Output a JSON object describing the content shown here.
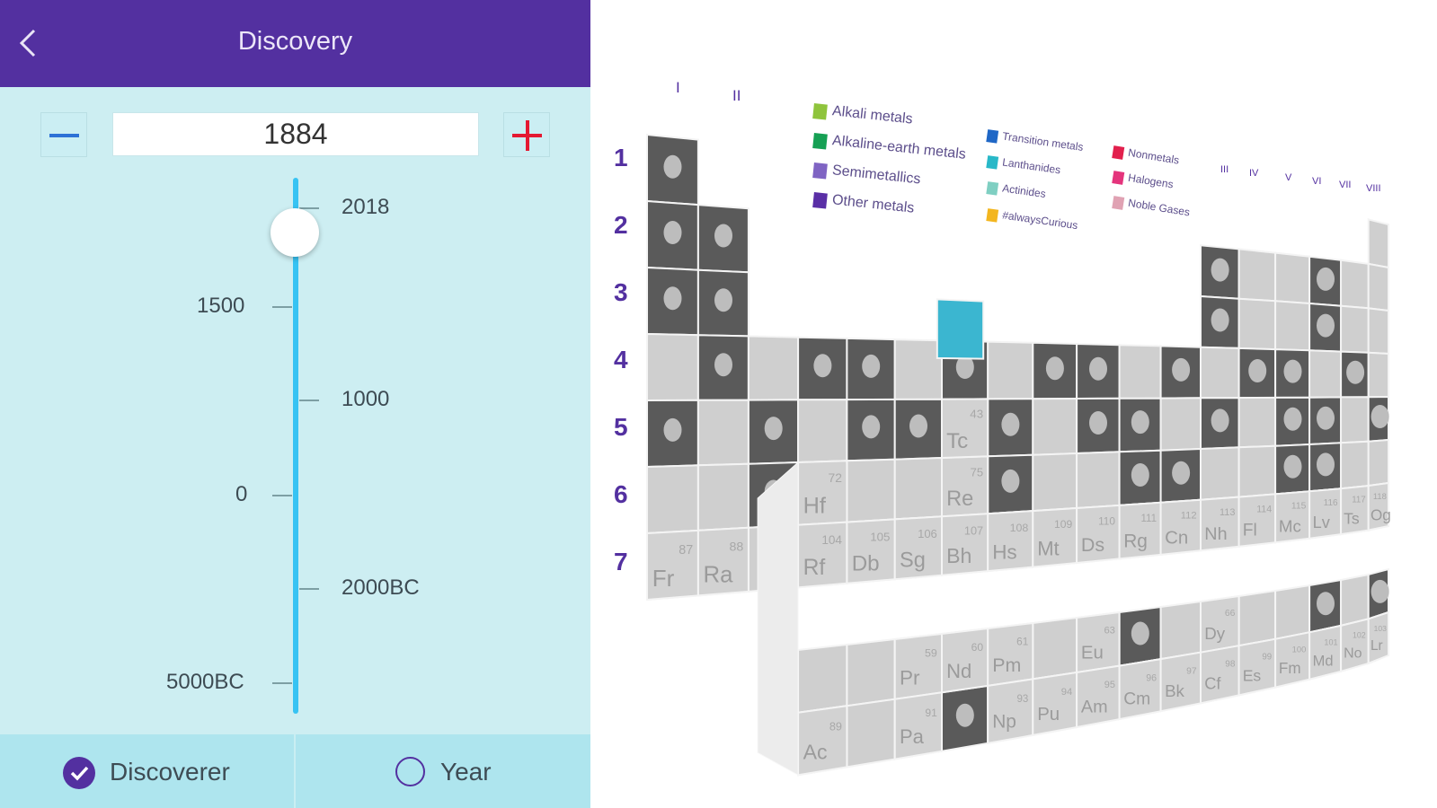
{
  "header": {
    "title": "Discovery"
  },
  "stepper": {
    "value": "1884"
  },
  "timeline": {
    "ticks": [
      "2018",
      "1500",
      "1000",
      "0",
      "2000BC",
      "5000BC"
    ],
    "slider_position": "2018"
  },
  "bottom_tabs": {
    "discoverer_label": "Discoverer",
    "year_label": "Year",
    "selected": "Discoverer"
  },
  "table": {
    "group_labels": [
      "I",
      "II",
      "III",
      "IV",
      "V",
      "VI",
      "VII",
      "VIII"
    ],
    "period_labels": [
      "1",
      "2",
      "3",
      "4",
      "5",
      "6",
      "7"
    ],
    "legend": [
      {
        "label": "Alkali metals",
        "color": "#8fc43c"
      },
      {
        "label": "Alkaline-earth metals",
        "color": "#16a054"
      },
      {
        "label": "Semimetallics",
        "color": "#7f64c3"
      },
      {
        "label": "Other metals",
        "color": "#5a2fa6"
      },
      {
        "label": "Transition metals",
        "color": "#1f67c6"
      },
      {
        "label": "Lanthanides",
        "color": "#28b8c8"
      },
      {
        "label": "Actinides",
        "color": "#7fcfc2"
      },
      {
        "label": "#alwaysCurious",
        "color": "#f3b61f"
      },
      {
        "label": "Nonmetals",
        "color": "#e2204d"
      },
      {
        "label": "Halogens",
        "color": "#e4347c"
      },
      {
        "label": "Noble Gases",
        "color": "#e0a2b3"
      }
    ],
    "elements": [
      {
        "symbol": "Fr",
        "number": "87"
      },
      {
        "symbol": "Ra",
        "number": "88"
      },
      {
        "symbol": "Hf",
        "number": "72"
      },
      {
        "symbol": "Re",
        "number": "75"
      },
      {
        "symbol": "Tc",
        "number": "43"
      },
      {
        "symbol": "Rf",
        "number": "104"
      },
      {
        "symbol": "Db",
        "number": "105"
      },
      {
        "symbol": "Sg",
        "number": "106"
      },
      {
        "symbol": "Bh",
        "number": "107"
      },
      {
        "symbol": "Hs",
        "number": "108"
      },
      {
        "symbol": "Mt",
        "number": "109"
      },
      {
        "symbol": "Ds",
        "number": "110"
      },
      {
        "symbol": "Rg",
        "number": "111"
      },
      {
        "symbol": "Cn",
        "number": "112"
      },
      {
        "symbol": "Nh",
        "number": "113"
      },
      {
        "symbol": "Fl",
        "number": "114"
      },
      {
        "symbol": "Mc",
        "number": "115"
      },
      {
        "symbol": "Lv",
        "number": "116"
      },
      {
        "symbol": "Ts",
        "number": "117"
      },
      {
        "symbol": "Og",
        "number": "118"
      },
      {
        "symbol": "Pr",
        "number": "59"
      },
      {
        "symbol": "Nd",
        "number": "60"
      },
      {
        "symbol": "Pm",
        "number": "61"
      },
      {
        "symbol": "Eu",
        "number": "63"
      },
      {
        "symbol": "Dy",
        "number": "66"
      },
      {
        "symbol": "Ac",
        "number": "89"
      },
      {
        "symbol": "Pa",
        "number": "91"
      },
      {
        "symbol": "Np",
        "number": "93"
      },
      {
        "symbol": "Pu",
        "number": "94"
      },
      {
        "symbol": "Am",
        "number": "95"
      },
      {
        "symbol": "Cm",
        "number": "96"
      },
      {
        "symbol": "Bk",
        "number": "97"
      },
      {
        "symbol": "Cf",
        "number": "98"
      },
      {
        "symbol": "Es",
        "number": "99"
      },
      {
        "symbol": "Fm",
        "number": "100"
      },
      {
        "symbol": "Md",
        "number": "101"
      },
      {
        "symbol": "No",
        "number": "102"
      },
      {
        "symbol": "Lr",
        "number": "103"
      }
    ]
  }
}
